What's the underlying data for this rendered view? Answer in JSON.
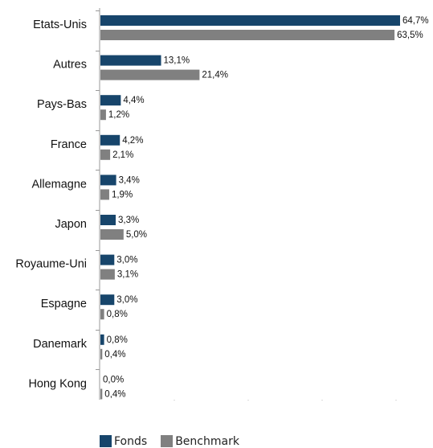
{
  "chart_data": {
    "type": "bar",
    "orientation": "horizontal",
    "categories": [
      "Etats-Unis",
      "Autres",
      "Pays-Bas",
      "France",
      "Allemagne",
      "Japon",
      "Royaume-Uni",
      "Espagne",
      "Danemark",
      "Hong Kong"
    ],
    "series": [
      {
        "name": "Fonds",
        "color": "#17456b",
        "values": [
          64.7,
          13.1,
          4.4,
          4.2,
          3.4,
          3.3,
          3.0,
          3.0,
          0.8,
          0.0
        ],
        "labels": [
          "64,7%",
          "13,1%",
          "4,4%",
          "4,2%",
          "3,4%",
          "3,3%",
          "3,0%",
          "3,0%",
          "0,8%",
          "0,0%"
        ]
      },
      {
        "name": "Benchmark",
        "color": "#808080",
        "values": [
          63.5,
          21.4,
          1.2,
          2.1,
          1.9,
          5.0,
          3.1,
          0.8,
          0.4,
          0.4
        ],
        "labels": [
          "63,5%",
          "21,4%",
          "1,2%",
          "2,1%",
          "1,9%",
          "5,0%",
          "3,1%",
          "0,8%",
          "0,4%",
          "0,4%"
        ]
      }
    ],
    "xlim": [
      0,
      64.7
    ],
    "legend_position": "bottom-left",
    "grid": false
  }
}
